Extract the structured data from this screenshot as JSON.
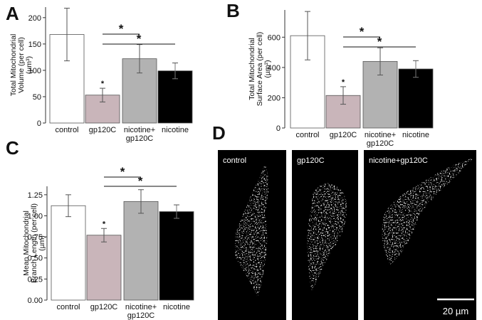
{
  "colors": {
    "control": "#ffffff",
    "gp120C": "#c9b5ba",
    "nicotine+gp120C": "#b2b2b2",
    "nicotine": "#000000",
    "micro_bg": "#000000"
  },
  "chart_data": [
    {
      "panel": "A",
      "type": "bar",
      "categories": [
        "control",
        "gp120C",
        "nicotine+\ngp120C",
        "nicotine"
      ],
      "values": [
        168,
        53,
        122,
        99
      ],
      "error": [
        50,
        13,
        27,
        15
      ],
      "ylabel_lines": [
        "Total Mitochondrial",
        "Volume (per cell)",
        "(µm³)"
      ],
      "ylim": [
        0,
        220
      ],
      "yticks": [
        0,
        50,
        100,
        150,
        200
      ],
      "tick_labels": [
        "0",
        "50",
        "100",
        "150",
        "200"
      ],
      "small_star_on": 1,
      "brackets": [
        {
          "from": 1,
          "to": 2,
          "label": "*"
        },
        {
          "from": 1,
          "to": 3,
          "label": "*"
        }
      ]
    },
    {
      "panel": "B",
      "type": "bar",
      "categories": [
        "control",
        "gp120C",
        "nicotine+\ngp120C",
        "nicotine"
      ],
      "values": [
        610,
        215,
        440,
        390
      ],
      "error": [
        160,
        58,
        90,
        55
      ],
      "ylabel_lines": [
        "Total Mitochondrial",
        "Surface Area (per cell)",
        "(µm²)"
      ],
      "ylim": [
        0,
        780
      ],
      "yticks": [
        0,
        200,
        400,
        600
      ],
      "tick_labels": [
        "0",
        "200",
        "400",
        "600"
      ],
      "small_star_on": 1,
      "brackets": [
        {
          "from": 1,
          "to": 2,
          "label": "*"
        },
        {
          "from": 1,
          "to": 3,
          "label": "*"
        }
      ]
    },
    {
      "panel": "C",
      "type": "bar",
      "categories": [
        "control",
        "gp120C",
        "nicotine+\ngp120C",
        "nicotine"
      ],
      "values": [
        1.12,
        0.77,
        1.17,
        1.05
      ],
      "error": [
        0.13,
        0.08,
        0.14,
        0.08
      ],
      "ylabel_lines": [
        "Mean Mitochondrial",
        "Branch Length (per cell)",
        "(µm)"
      ],
      "ylim": [
        0,
        1.35
      ],
      "yticks": [
        0,
        0.25,
        0.5,
        0.75,
        1.0,
        1.25
      ],
      "tick_labels": [
        "0.00",
        "0.25",
        "0.50",
        "0.75",
        "1.00",
        "1.25"
      ],
      "small_star_on": 1,
      "brackets": [
        {
          "from": 1,
          "to": 2,
          "label": "*"
        },
        {
          "from": 1,
          "to": 3,
          "label": "*"
        }
      ]
    }
  ],
  "micrographs": {
    "panel": "D",
    "labels": [
      "control",
      "gp120C",
      "nicotine+gp120C"
    ],
    "scale_bar": "20 µm"
  }
}
